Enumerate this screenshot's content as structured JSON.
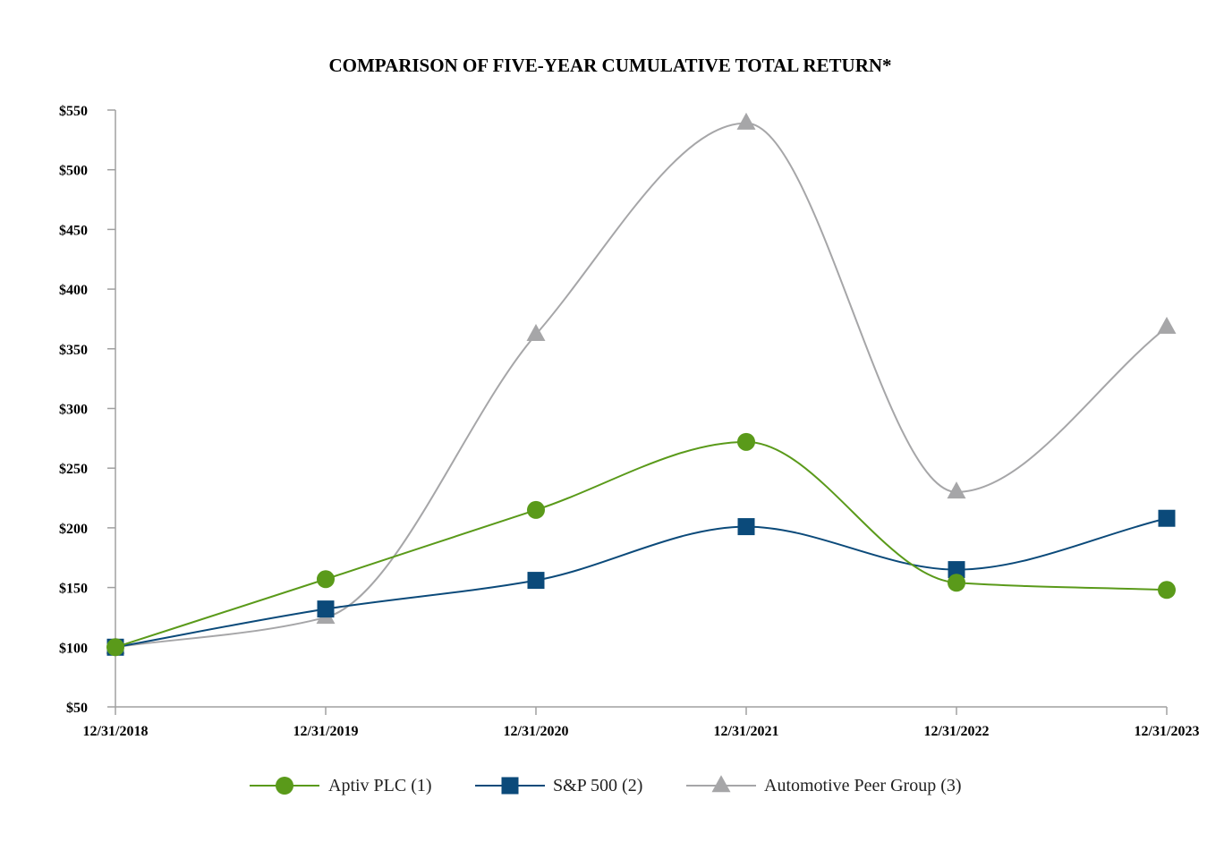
{
  "chart_data": {
    "type": "line",
    "title": "COMPARISON OF FIVE-YEAR CUMULATIVE TOTAL RETURN*",
    "xlabel": "",
    "ylabel": "",
    "categories": [
      "12/31/2018",
      "12/31/2019",
      "12/31/2020",
      "12/31/2021",
      "12/31/2022",
      "12/31/2023"
    ],
    "ylim": [
      50,
      550
    ],
    "yticks": [
      50,
      100,
      150,
      200,
      250,
      300,
      350,
      400,
      450,
      500,
      550
    ],
    "ytick_labels": [
      "$50",
      "$100",
      "$150",
      "$200",
      "$250",
      "$300",
      "$350",
      "$400",
      "$450",
      "$500",
      "$550"
    ],
    "grid": false,
    "legend_position": "bottom",
    "series": [
      {
        "name": "Aptiv PLC (1)",
        "color": "#5a9a1a",
        "marker": "circle",
        "values": [
          100,
          157,
          215,
          272,
          154,
          148
        ]
      },
      {
        "name": "S&P 500 (2)",
        "color": "#0b4a7a",
        "marker": "square",
        "values": [
          100,
          132,
          156,
          201,
          165,
          208
        ]
      },
      {
        "name": "Automotive Peer Group (3)",
        "color": "#a6a6a8",
        "marker": "triangle",
        "values": [
          100,
          125,
          362,
          539,
          230,
          368
        ]
      }
    ]
  }
}
